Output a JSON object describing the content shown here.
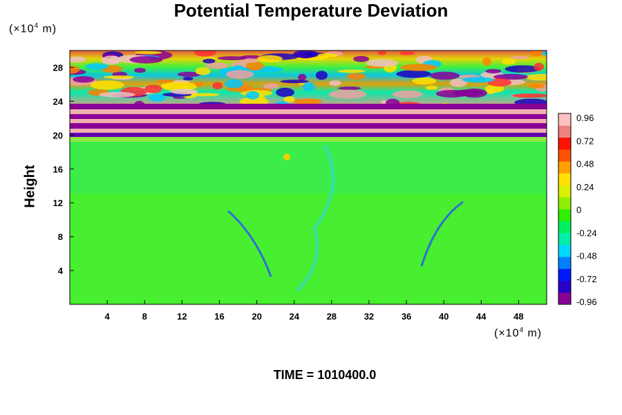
{
  "chart_data": {
    "type": "heatmap",
    "title": "Potential Temperature Deviation",
    "ylabel": "Height",
    "y_unit_prefix": "(×10",
    "y_unit_exp": "4",
    "y_unit_suffix": " m)",
    "x_unit_prefix": "(×10",
    "x_unit_exp": "4",
    "x_unit_suffix": " m)",
    "xlim": [
      0,
      51
    ],
    "ylim": [
      0,
      30
    ],
    "x_ticks": [
      4,
      8,
      12,
      16,
      20,
      24,
      28,
      32,
      36,
      40,
      44,
      48
    ],
    "y_ticks": [
      4,
      8,
      12,
      16,
      20,
      24,
      28
    ],
    "colorbar": {
      "range": [
        -1.0,
        1.0
      ],
      "tick_labels": [
        "0.96",
        "0.72",
        "0.48",
        "0.24",
        "0",
        "-0.24",
        "-0.48",
        "-0.72",
        "-0.96"
      ],
      "colors": [
        "#8a0097",
        "#2800c8",
        "#0018ff",
        "#0080ff",
        "#00d8ff",
        "#00f0a8",
        "#00f060",
        "#30f000",
        "#90f000",
        "#d8f000",
        "#ffe000",
        "#ffa000",
        "#ff5000",
        "#ff1000",
        "#f08080",
        "#ffc0c0"
      ]
    },
    "time_label": "TIME = 1010400.0"
  }
}
